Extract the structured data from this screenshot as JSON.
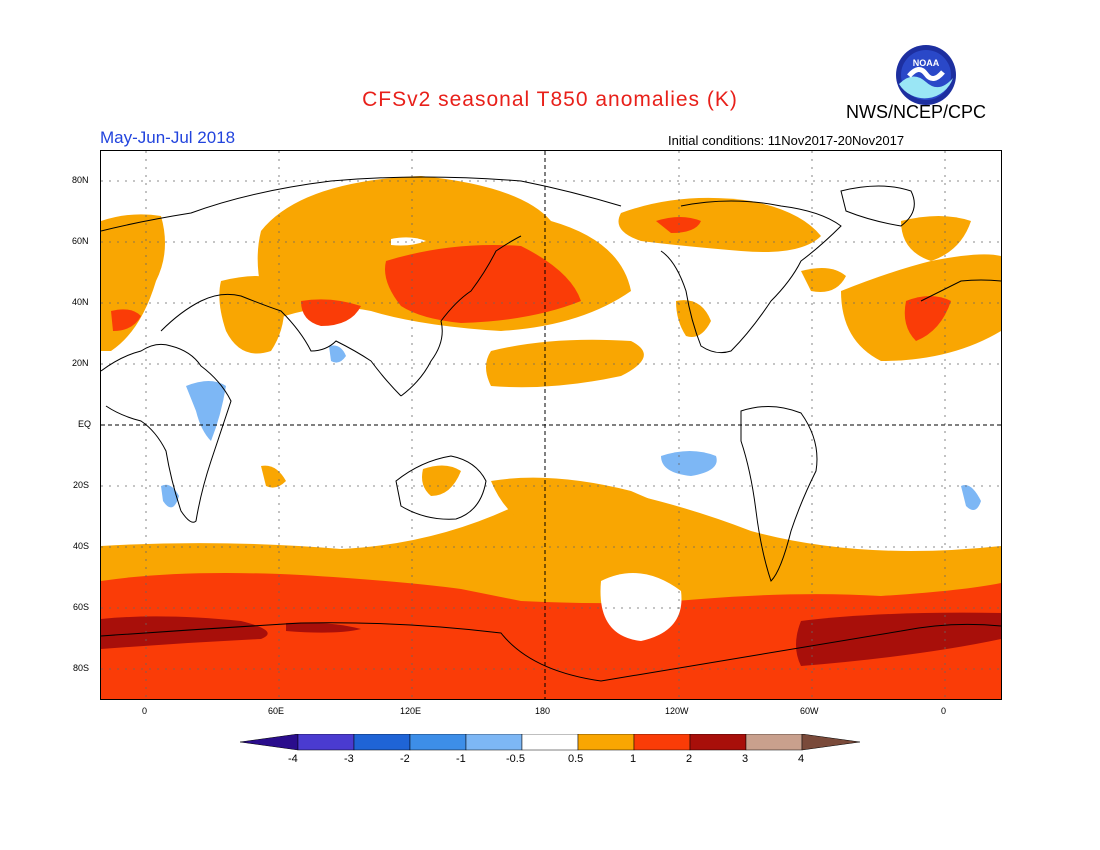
{
  "header": {
    "title": "CFSv2 seasonal T850 anomalies (K)",
    "period": "May-Jun-Jul 2018",
    "agency": "NWS/NCEP/CPC",
    "initial_conditions": "Initial conditions: 11Nov2017-20Nov2017",
    "logo_text": "NOAA"
  },
  "map": {
    "lat_labels": [
      "80N",
      "60N",
      "40N",
      "20N",
      "EQ",
      "20S",
      "40S",
      "60S",
      "80S"
    ],
    "lon_labels": [
      "0",
      "60E",
      "120E",
      "180",
      "120W",
      "60W",
      "0"
    ]
  },
  "legend": {
    "labels": [
      "-4",
      "-3",
      "-2",
      "-1",
      "-0.5",
      "0.5",
      "1",
      "2",
      "3",
      "4"
    ],
    "colors": [
      "#2a0d8c",
      "#4a3bd0",
      "#1f64d6",
      "#3d8ee8",
      "#7db7f5",
      "#ffffff",
      "#f9a602",
      "#fa3c07",
      "#a80f0a",
      "#c9a08d",
      "#7a4a3a"
    ]
  }
}
